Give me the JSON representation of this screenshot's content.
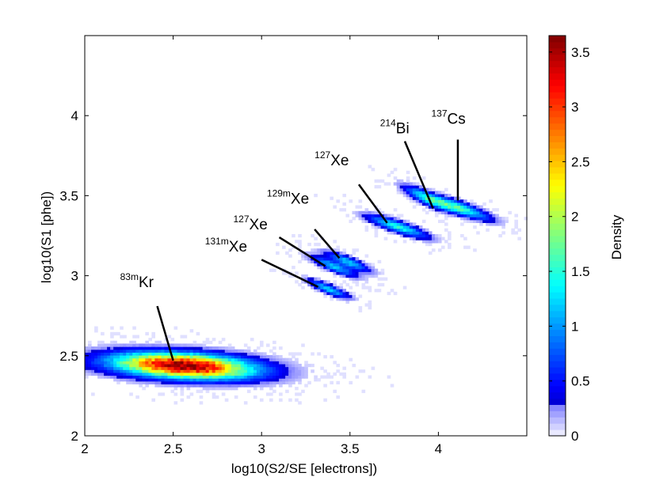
{
  "chart_data": {
    "type": "heatmap",
    "title": "",
    "xlabel": "log10(S2/SE [electrons])",
    "ylabel": "log10(S1 [phe])",
    "xlim": [
      2,
      4.5
    ],
    "ylim": [
      2,
      4.5
    ],
    "x_ticks": [
      "2",
      "2.5",
      "3",
      "3.5",
      "4"
    ],
    "x_tick_values": [
      2,
      2.5,
      3,
      3.5,
      4
    ],
    "y_ticks": [
      "2",
      "2.5",
      "3",
      "3.5",
      "4"
    ],
    "y_tick_values": [
      2,
      2.5,
      3,
      3.5,
      4
    ],
    "grid": false,
    "colorbar": {
      "label": "Density",
      "range": [
        0,
        3.65
      ],
      "ticks": [
        "0",
        "0.5",
        "1",
        "1.5",
        "2",
        "2.5",
        "3",
        "3.5"
      ],
      "tick_values": [
        0,
        0.5,
        1,
        1.5,
        2,
        2.5,
        3,
        3.5
      ],
      "colormap": "jet"
    },
    "clusters": [
      {
        "iso_mass": "83m",
        "element": "Kr",
        "cx": 2.55,
        "cy": 2.43,
        "sx": 0.32,
        "sy": 0.065,
        "rho": -0.3,
        "peak": 3.65,
        "label_x": 2.2,
        "label_y": 2.93,
        "pointer": [
          [
            2.41,
            2.81
          ],
          [
            2.5,
            2.47
          ]
        ]
      },
      {
        "iso_mass": "131m",
        "element": "Xe",
        "cx": 3.37,
        "cy": 2.91,
        "sx": 0.09,
        "sy": 0.045,
        "rho": -0.85,
        "peak": 1.2,
        "label_x": 2.68,
        "label_y": 3.15,
        "pointer": [
          [
            3.0,
            3.1
          ],
          [
            3.32,
            2.93
          ]
        ]
      },
      {
        "iso_mass": "127",
        "element": "Xe",
        "cx": 3.4,
        "cy": 3.05,
        "sx": 0.1,
        "sy": 0.05,
        "rho": -0.85,
        "peak": 1.15,
        "label_x": 2.84,
        "label_y": 3.29,
        "pointer": [
          [
            3.1,
            3.24
          ],
          [
            3.36,
            3.06
          ]
        ]
      },
      {
        "iso_mass": "129m",
        "element": "Xe",
        "cx": 3.48,
        "cy": 3.08,
        "sx": 0.1,
        "sy": 0.05,
        "rho": -0.85,
        "peak": 1.15,
        "label_x": 3.03,
        "label_y": 3.45,
        "pointer": [
          [
            3.3,
            3.29
          ],
          [
            3.44,
            3.11
          ]
        ]
      },
      {
        "iso_mass": "127",
        "element": "Xe",
        "cx": 3.76,
        "cy": 3.3,
        "sx": 0.13,
        "sy": 0.055,
        "rho": -0.85,
        "peak": 1.45,
        "label_x": 3.3,
        "label_y": 3.69,
        "pointer": [
          [
            3.55,
            3.57
          ],
          [
            3.71,
            3.33
          ]
        ]
      },
      {
        "iso_mass": "214",
        "element": "Bi",
        "cx": 3.92,
        "cy": 3.48,
        "sx": 0.1,
        "sy": 0.06,
        "rho": -0.85,
        "peak": 1.1,
        "label_x": 3.67,
        "label_y": 3.89,
        "pointer": [
          [
            3.81,
            3.84
          ],
          [
            3.97,
            3.42
          ]
        ]
      },
      {
        "iso_mass": "137",
        "element": "Cs",
        "cx": 4.1,
        "cy": 3.42,
        "sx": 0.14,
        "sy": 0.06,
        "rho": -0.85,
        "peak": 1.6,
        "label_x": 3.96,
        "label_y": 3.95,
        "pointer": [
          [
            4.11,
            3.85
          ],
          [
            4.11,
            3.47
          ]
        ]
      }
    ]
  }
}
